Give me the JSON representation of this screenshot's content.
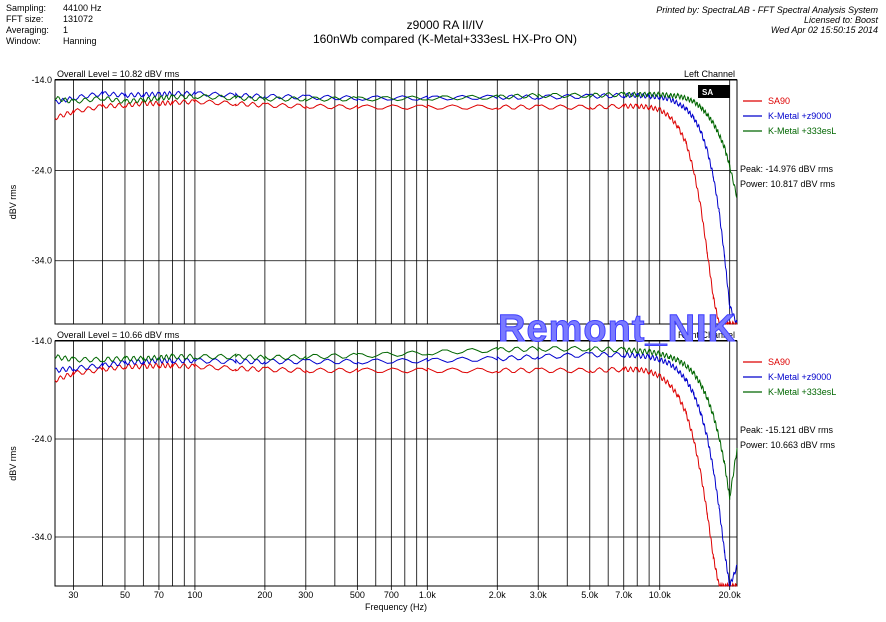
{
  "header": {
    "meta": [
      {
        "label": "Sampling:",
        "value": "44100 Hz"
      },
      {
        "label": "FFT size:",
        "value": "131072"
      },
      {
        "label": "Averaging:",
        "value": "1"
      },
      {
        "label": "Window:",
        "value": "Hanning"
      }
    ],
    "title_line1": "z9000  RA II/IV",
    "title_line2": "160nWb compared (K-Metal+333esL HX-Pro ON)",
    "printed_by": "Printed by: SpectraLAB - FFT Spectral Analysis System",
    "licensed_to": "Licensed to: Boost",
    "date": "Wed Apr 02 15:50:15 2014"
  },
  "watermark": "Remont_NIK",
  "colors": {
    "SA90": "#dd0000",
    "K-Metal +z9000": "#0000cc",
    "K-Metal +333esL": "#006600"
  },
  "chart_data": [
    {
      "type": "line",
      "channel_label": "Left Channel",
      "overall_level": "Overall Level = 10.82 dBV rms",
      "peak": "Peak: -14.976 dBV rms",
      "power": "Power: 10.817 dBV rms",
      "ylabel": "dBV rms",
      "xlabel": "",
      "xscale": "log",
      "xlim": [
        25,
        21500
      ],
      "ylim": [
        -41,
        -14
      ],
      "y_ticks": [
        -14.0,
        -24.0,
        -34.0
      ],
      "y_tick_labels": [
        "-14.0",
        "-24.0",
        "-34.0"
      ],
      "grid": true,
      "legend_position": "right",
      "x": [
        25,
        30,
        40,
        50,
        60,
        70,
        80,
        100,
        150,
        200,
        300,
        500,
        1000,
        2000,
        3000,
        5000,
        7000,
        8000,
        9000,
        10000,
        11000,
        12000,
        13000,
        14000,
        15000,
        16000,
        17000,
        18000,
        19000,
        20000,
        21500
      ],
      "series": [
        {
          "name": "SA90",
          "values": [
            -18.2,
            -17.5,
            -16.9,
            -16.8,
            -16.6,
            -16.6,
            -16.5,
            -16.4,
            -16.6,
            -16.8,
            -16.9,
            -17.0,
            -17.0,
            -17.0,
            -17.0,
            -17.0,
            -16.9,
            -16.9,
            -17.0,
            -17.3,
            -18.0,
            -19.2,
            -21.0,
            -24.0,
            -28.0,
            -33.0,
            -38.0,
            -41.0,
            -41.0,
            -41.0,
            -41.0
          ]
        },
        {
          "name": "K-Metal +z9000",
          "values": [
            -16.5,
            -16.0,
            -15.5,
            -15.7,
            -15.6,
            -15.6,
            -15.5,
            -15.5,
            -15.7,
            -15.8,
            -15.9,
            -16.0,
            -16.0,
            -15.9,
            -15.9,
            -15.8,
            -15.7,
            -15.7,
            -15.8,
            -15.9,
            -16.1,
            -16.6,
            -17.2,
            -18.2,
            -19.6,
            -21.8,
            -24.6,
            -28.5,
            -33.5,
            -39.0,
            -41.0
          ]
        },
        {
          "name": "K-Metal +333esL",
          "values": [
            -16.0,
            -16.4,
            -16.0,
            -16.4,
            -16.2,
            -16.0,
            -15.9,
            -15.8,
            -16.0,
            -16.1,
            -16.1,
            -16.1,
            -16.0,
            -15.9,
            -15.7,
            -15.7,
            -15.6,
            -15.6,
            -15.6,
            -15.6,
            -15.7,
            -15.8,
            -16.0,
            -16.4,
            -17.0,
            -17.8,
            -18.8,
            -20.0,
            -21.5,
            -23.5,
            -27.0
          ]
        }
      ]
    },
    {
      "type": "line",
      "channel_label": "Right Channel",
      "overall_level": "Overall Level = 10.66 dBV rms",
      "peak": "Peak: -15.121 dBV rms",
      "power": "Power: 10.663 dBV rms",
      "ylabel": "dBV rms",
      "xlabel": "Frequency (Hz)",
      "xscale": "log",
      "xlim": [
        25,
        21500
      ],
      "ylim": [
        -39,
        -14
      ],
      "y_ticks": [
        -14.0,
        -24.0,
        -34.0
      ],
      "y_tick_labels": [
        "-14.0",
        "-24.0",
        "-34.0"
      ],
      "x_ticks": [
        30,
        50,
        70,
        100,
        200,
        300,
        500,
        700,
        1000,
        2000,
        3000,
        5000,
        7000,
        10000,
        20000
      ],
      "x_tick_labels": [
        "30",
        "50",
        "70",
        "100",
        "200",
        "300",
        "500",
        "700",
        "1.0k",
        "2.0k",
        "3.0k",
        "5.0k",
        "7.0k",
        "10.0k",
        "20.0k"
      ],
      "grid": true,
      "legend_position": "right",
      "x": [
        25,
        30,
        40,
        50,
        60,
        70,
        80,
        100,
        150,
        200,
        300,
        500,
        1000,
        2000,
        3000,
        5000,
        7000,
        8000,
        9000,
        10000,
        11000,
        12000,
        13000,
        14000,
        15000,
        16000,
        17000,
        18000,
        19000,
        20000,
        21500
      ],
      "series": [
        {
          "name": "SA90",
          "values": [
            -18.0,
            -17.3,
            -16.9,
            -16.6,
            -16.6,
            -16.5,
            -16.5,
            -16.6,
            -16.8,
            -16.9,
            -17.0,
            -17.0,
            -17.0,
            -17.0,
            -17.0,
            -17.0,
            -16.9,
            -16.9,
            -17.1,
            -17.6,
            -18.4,
            -19.6,
            -21.4,
            -24.0,
            -27.5,
            -31.5,
            -36.0,
            -39.0,
            -39.0,
            -39.0,
            -39.0
          ]
        },
        {
          "name": "K-Metal +z9000",
          "values": [
            -17.0,
            -16.8,
            -16.5,
            -16.2,
            -16.1,
            -16.0,
            -16.0,
            -16.0,
            -16.1,
            -16.1,
            -16.1,
            -16.1,
            -16.0,
            -15.8,
            -15.6,
            -15.4,
            -15.4,
            -15.5,
            -15.6,
            -15.9,
            -16.3,
            -17.0,
            -18.0,
            -19.4,
            -21.3,
            -23.8,
            -27.0,
            -31.0,
            -35.5,
            -39.0,
            -37.0
          ]
        },
        {
          "name": "K-Metal +333esL",
          "values": [
            -15.6,
            -15.9,
            -15.9,
            -15.8,
            -15.8,
            -15.7,
            -15.6,
            -15.6,
            -15.6,
            -15.7,
            -15.6,
            -15.5,
            -15.2,
            -14.9,
            -14.8,
            -14.8,
            -14.9,
            -15.0,
            -15.1,
            -15.3,
            -15.6,
            -16.0,
            -16.5,
            -17.3,
            -18.4,
            -19.8,
            -21.6,
            -23.8,
            -26.5,
            -30.0,
            -25.0
          ]
        }
      ]
    }
  ]
}
